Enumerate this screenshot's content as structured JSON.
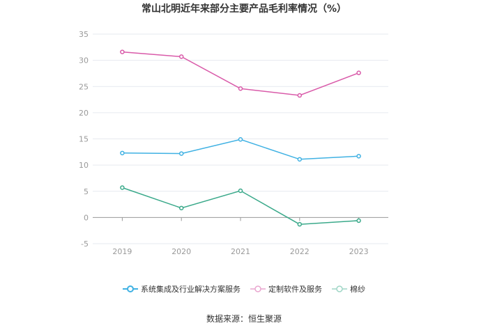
{
  "chart_data": {
    "type": "line",
    "title": "常山北明近年来部分主要产品毛利率情况（%）",
    "categories": [
      "2019",
      "2020",
      "2021",
      "2022",
      "2023"
    ],
    "series": [
      {
        "name": "系统集成及行业解决方案服务",
        "color": "#3fb1e3",
        "values": [
          12.3,
          12.2,
          14.9,
          11.1,
          11.7
        ]
      },
      {
        "name": "定制软件及服务",
        "color": "#d95aa9",
        "values": [
          31.6,
          30.7,
          24.6,
          23.3,
          27.6
        ]
      },
      {
        "name": "棉纱",
        "color": "#3aa98a",
        "values": [
          5.7,
          1.8,
          5.1,
          -1.3,
          -0.6
        ]
      }
    ],
    "y_ticks": [
      "35",
      "30",
      "25",
      "20",
      "15",
      "10",
      "5",
      "0",
      "-5"
    ],
    "ylim": [
      -5,
      35
    ],
    "grid": true,
    "legend_position": "bottom"
  },
  "source": "数据来源：恒生聚源"
}
